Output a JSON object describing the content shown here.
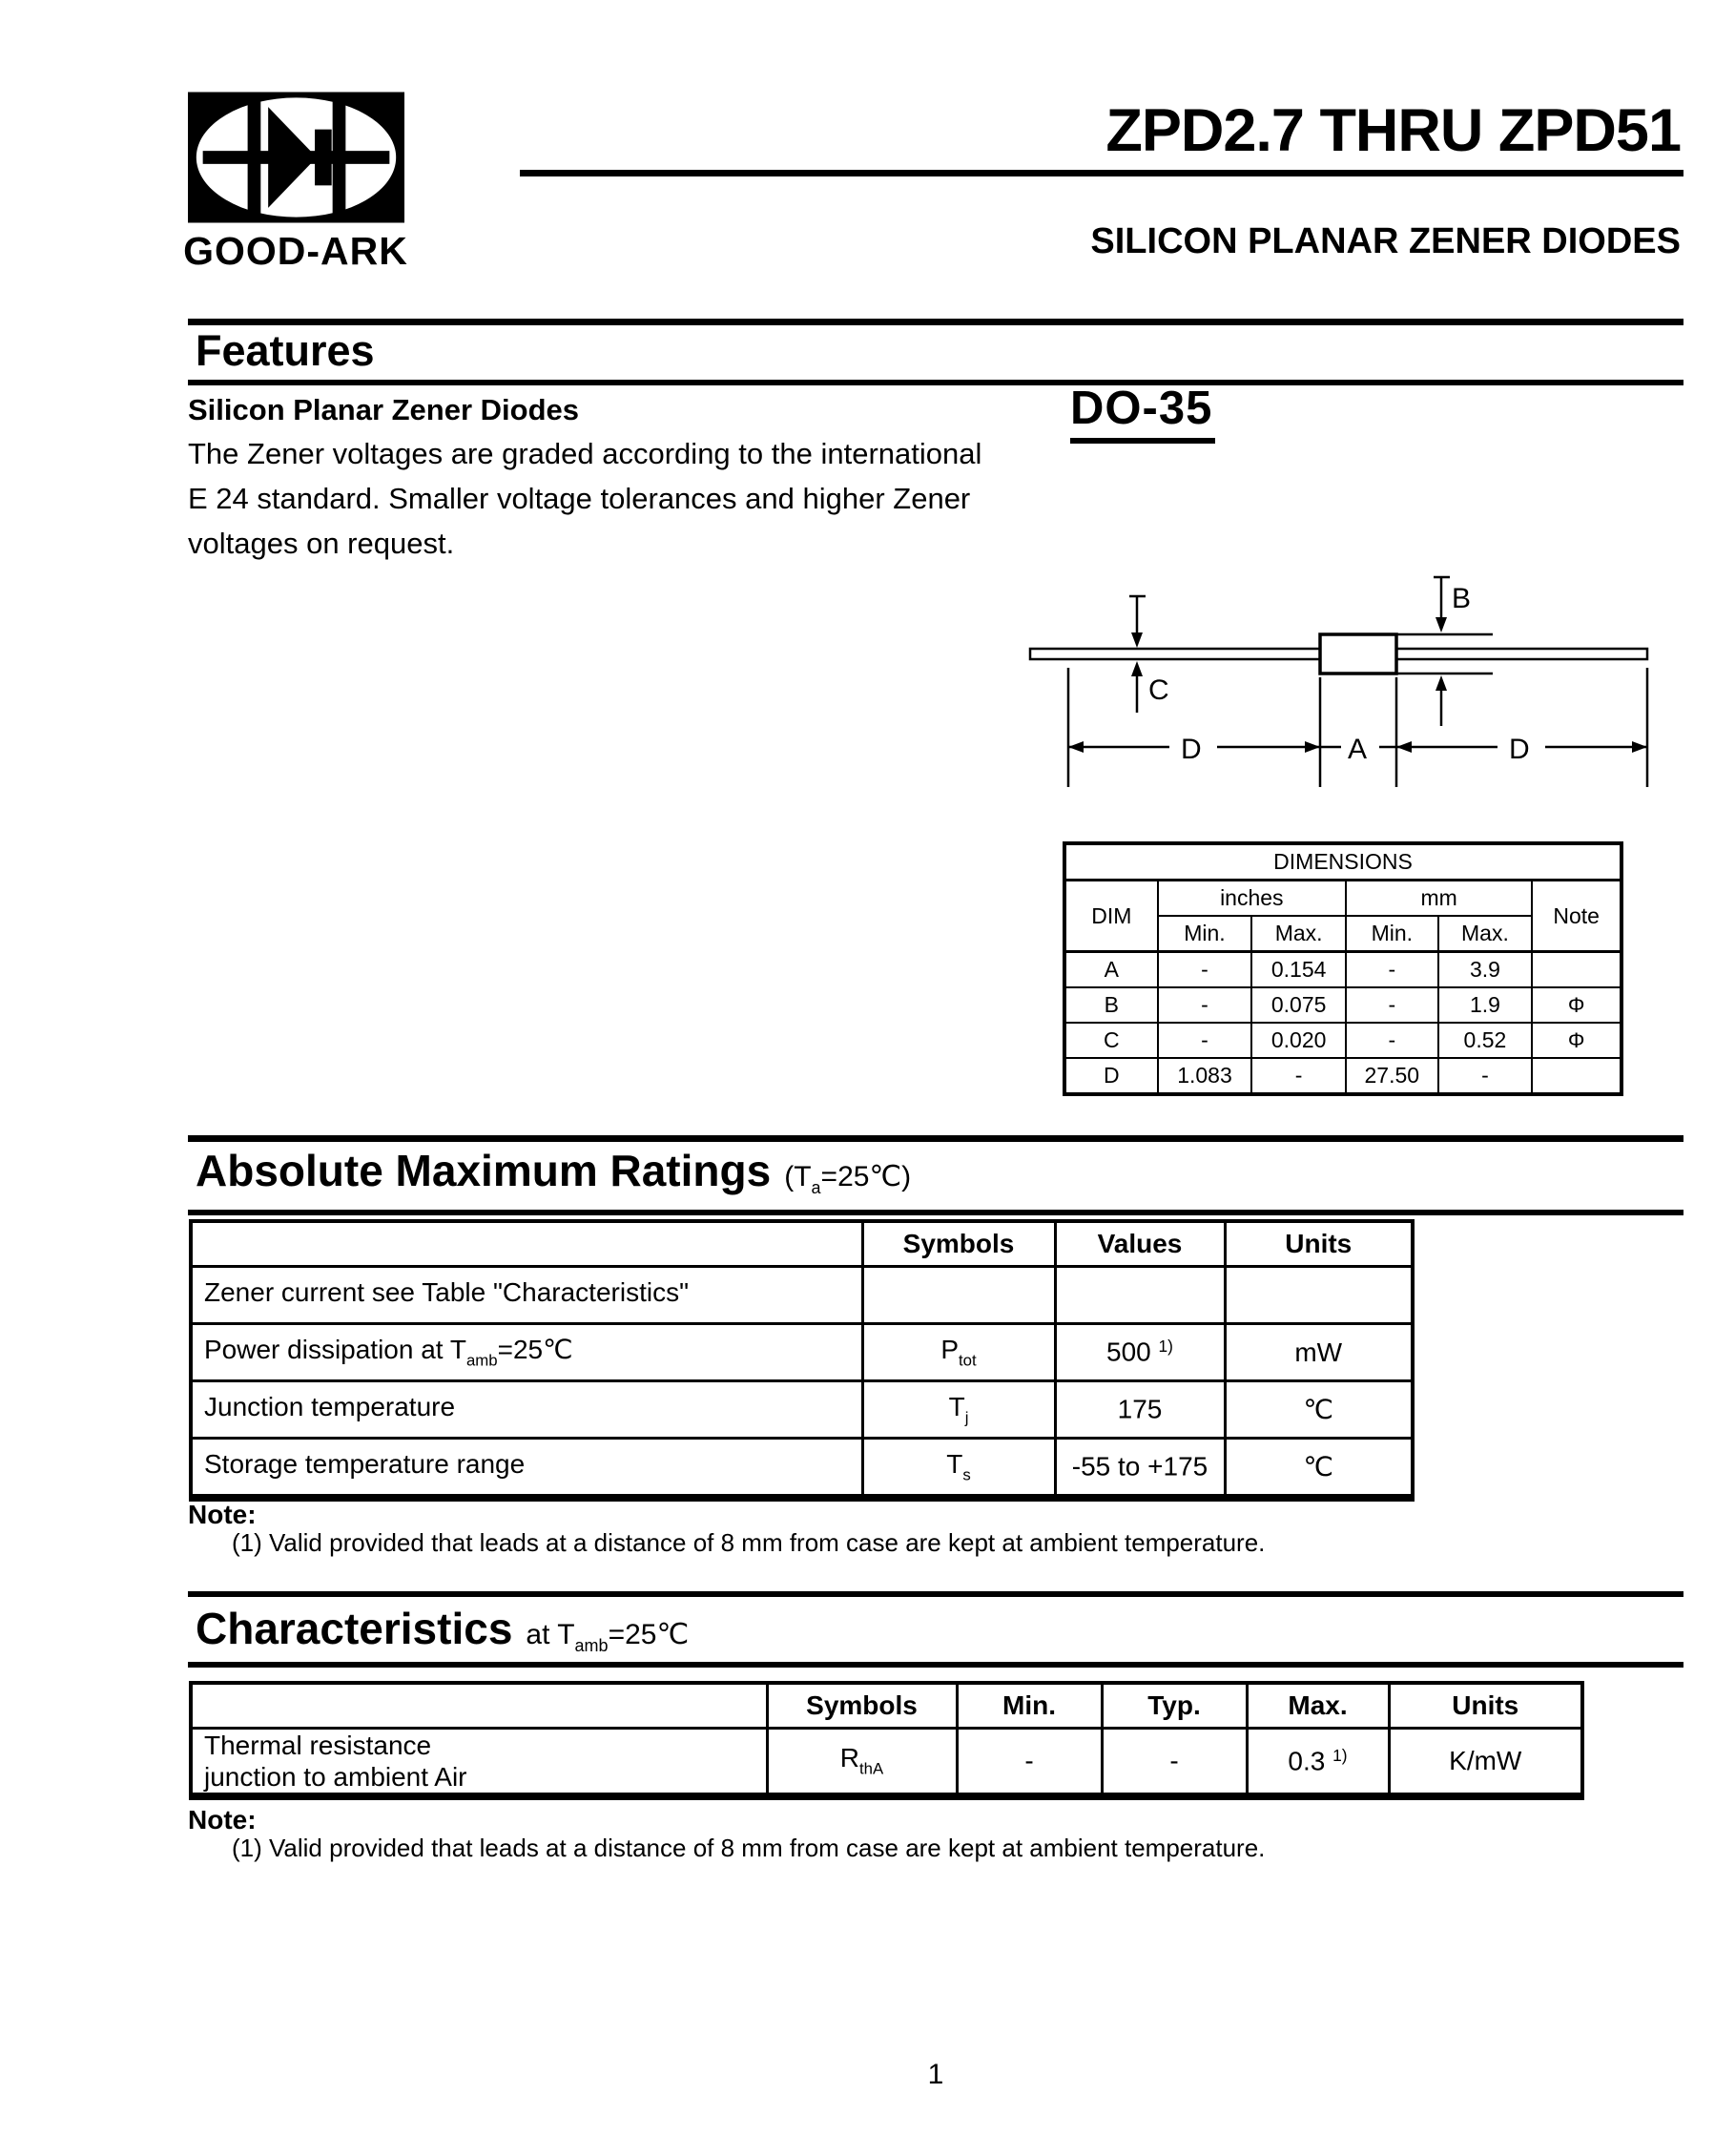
{
  "colors": {
    "ink": "#000000",
    "paper": "#ffffff"
  },
  "header": {
    "brand": "GOOD-ARK",
    "title": "ZPD2.7 THRU ZPD51",
    "subtitle": "SILICON PLANAR ZENER DIODES"
  },
  "features": {
    "heading": "Features",
    "subheading": "Silicon Planar Zener Diodes",
    "lines": [
      "The Zener voltages are graded according to the international",
      "E 24 standard. Smaller voltage tolerances and higher Zener",
      "voltages on request."
    ],
    "package_label": "DO-35"
  },
  "diagram": {
    "labels": {
      "a": "A",
      "b": "B",
      "c": "C",
      "d_left": "D",
      "d_right": "D"
    }
  },
  "dimensions_table": {
    "title": "DIMENSIONS",
    "col_dim": "DIM",
    "col_inches": "inches",
    "col_mm": "mm",
    "col_note": "Note",
    "col_min": "Min.",
    "col_max": "Max.",
    "rows": [
      {
        "dim": "A",
        "in_min": "-",
        "in_max": "0.154",
        "mm_min": "-",
        "mm_max": "3.9",
        "note": ""
      },
      {
        "dim": "B",
        "in_min": "-",
        "in_max": "0.075",
        "mm_min": "-",
        "mm_max": "1.9",
        "note": "Φ"
      },
      {
        "dim": "C",
        "in_min": "-",
        "in_max": "0.020",
        "mm_min": "-",
        "mm_max": "0.52",
        "note": "Φ"
      },
      {
        "dim": "D",
        "in_min": "1.083",
        "in_max": "-",
        "mm_min": "27.50",
        "mm_max": "-",
        "note": ""
      }
    ]
  },
  "abs_max": {
    "heading": "Absolute Maximum Ratings",
    "condition": {
      "pre": "(T",
      "sub": "a",
      "post": "=25℃)"
    },
    "columns": {
      "symbols": "Symbols",
      "values": "Values",
      "units": "Units"
    },
    "rows": [
      {
        "desc_pre": "Zener current see Table \"Characteristics\"",
        "desc_sub": "",
        "desc_post": "",
        "sym": "",
        "sym_sub": "",
        "value": "",
        "value_sup": "",
        "unit": ""
      },
      {
        "desc_pre": "Power dissipation at T",
        "desc_sub": "amb",
        "desc_post": "=25℃",
        "sym": "P",
        "sym_sub": "tot",
        "value": "500",
        "value_sup": "1)",
        "unit": "mW"
      },
      {
        "desc_pre": "Junction temperature",
        "desc_sub": "",
        "desc_post": "",
        "sym": "T",
        "sym_sub": "j",
        "value": "175",
        "value_sup": "",
        "unit": "℃"
      },
      {
        "desc_pre": "Storage temperature range",
        "desc_sub": "",
        "desc_post": "",
        "sym": "T",
        "sym_sub": "s",
        "value": "-55 to +175",
        "value_sup": "",
        "unit": "℃"
      }
    ],
    "note_label": "Note:",
    "note": "(1)  Valid provided that leads at a distance of 8 mm from case are kept at ambient temperature."
  },
  "characteristics": {
    "heading": "Characteristics",
    "condition": {
      "pre": "at T",
      "sub": "amb",
      "post": "=25℃"
    },
    "columns": {
      "symbols": "Symbols",
      "min": "Min.",
      "typ": "Typ.",
      "max": "Max.",
      "units": "Units"
    },
    "rows": [
      {
        "desc_line1": "Thermal resistance",
        "desc_line2": "junction to ambient Air",
        "sym": "R",
        "sym_sub": "thA",
        "min": "-",
        "typ": "-",
        "max": "0.3",
        "max_sup": "1)",
        "units": "K/mW"
      }
    ],
    "note_label": "Note:",
    "note": "(1)  Valid provided that leads at a distance of 8 mm from case are kept at ambient temperature."
  },
  "footer": {
    "page": "1"
  }
}
